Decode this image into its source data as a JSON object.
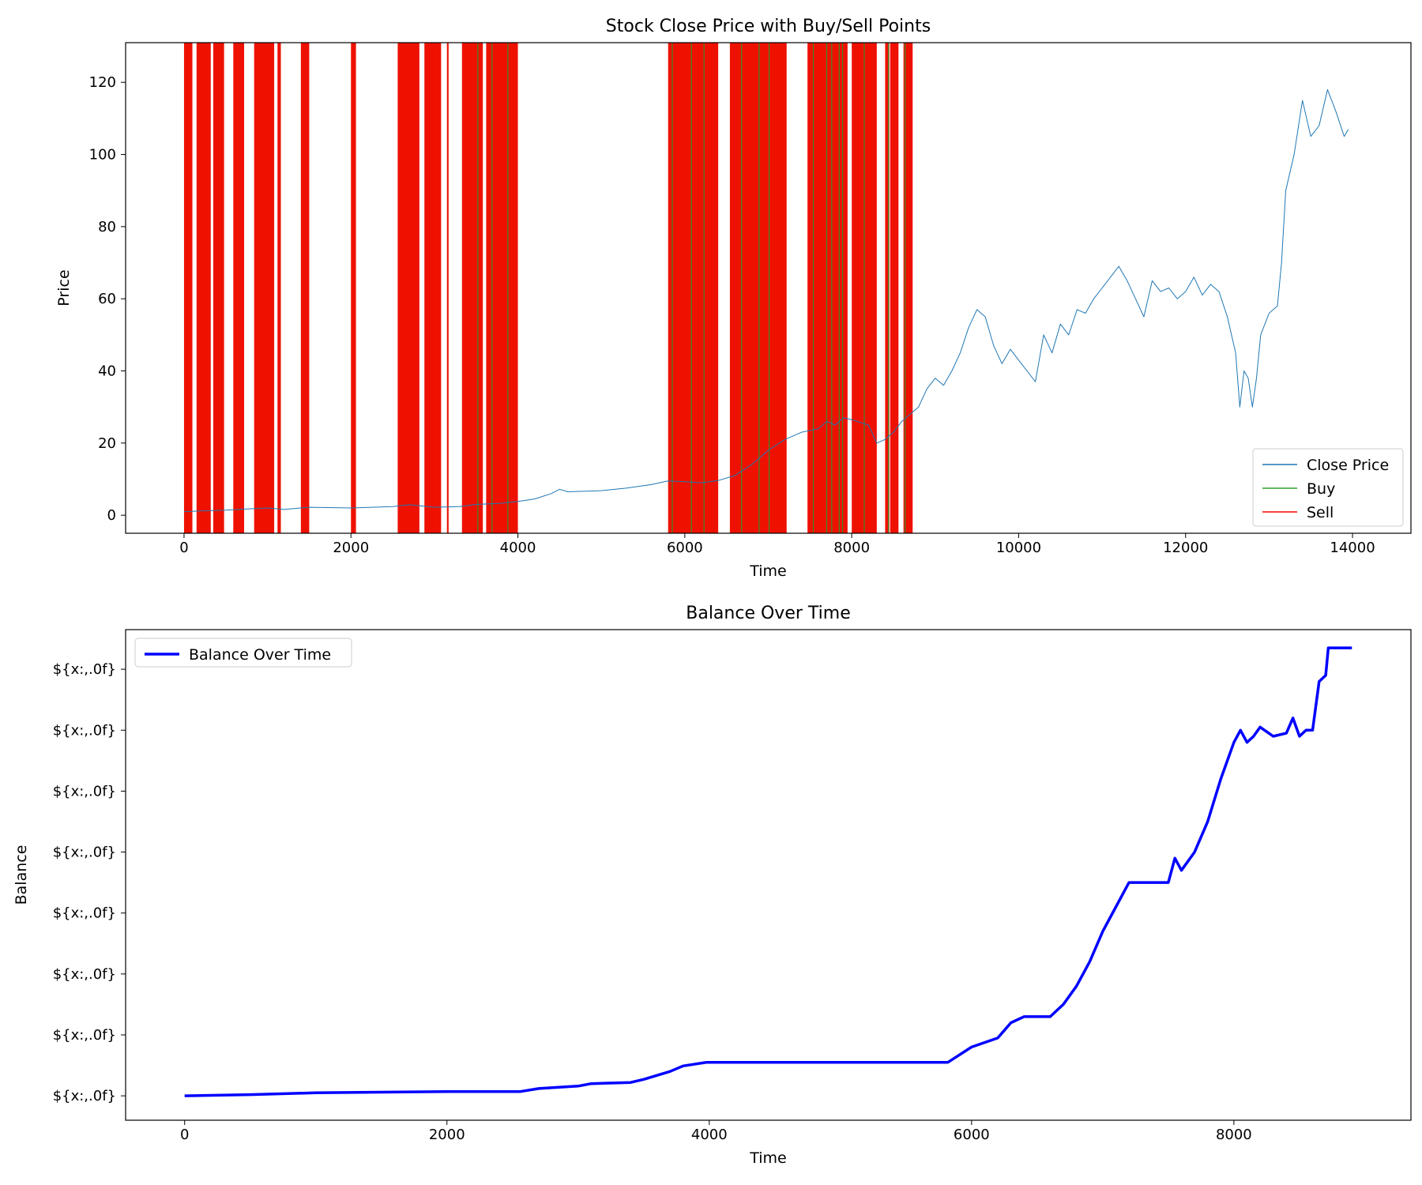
{
  "chart_data": [
    {
      "type": "line",
      "title": "Stock Close Price with Buy/Sell Points",
      "xlabel": "Time",
      "ylabel": "Price",
      "xlim": [
        -700,
        14700
      ],
      "ylim": [
        -5,
        131
      ],
      "xticks": [
        0,
        2000,
        4000,
        6000,
        8000,
        10000,
        12000,
        14000
      ],
      "xtick_labels": [
        "0",
        "2000",
        "4000",
        "6000",
        "8000",
        "10000",
        "12000",
        "14000"
      ],
      "yticks": [
        0,
        20,
        40,
        60,
        80,
        100,
        120
      ],
      "ytick_labels": [
        "0",
        "20",
        "40",
        "60",
        "80",
        "100",
        "120"
      ],
      "grid": false,
      "legend_position": "lower-right",
      "legend": [
        {
          "label": "Close Price",
          "color": "#1f77b4"
        },
        {
          "label": "Buy",
          "color": "#2ca02c"
        },
        {
          "label": "Sell",
          "color": "#ff0000"
        }
      ],
      "series": [
        {
          "name": "Close Price",
          "color": "#1f77b4",
          "x": [
            0,
            200,
            500,
            800,
            1000,
            1200,
            1500,
            2000,
            2500,
            2700,
            3000,
            3300,
            3500,
            3800,
            4000,
            4200,
            4400,
            4500,
            4600,
            5000,
            5300,
            5600,
            5800,
            6000,
            6200,
            6400,
            6600,
            6800,
            7000,
            7200,
            7400,
            7600,
            7700,
            7800,
            7900,
            8000,
            8200,
            8300,
            8400,
            8500,
            8600,
            8700,
            8800,
            8900,
            9000,
            9100,
            9200,
            9300,
            9400,
            9500,
            9600,
            9700,
            9800,
            9900,
            10000,
            10100,
            10200,
            10300,
            10400,
            10500,
            10600,
            10700,
            10800,
            10900,
            11000,
            11100,
            11200,
            11300,
            11400,
            11500,
            11600,
            11700,
            11800,
            11900,
            12000,
            12100,
            12200,
            12300,
            12400,
            12500,
            12600,
            12650,
            12700,
            12750,
            12800,
            12850,
            12900,
            13000,
            13100,
            13150,
            13200,
            13300,
            13400,
            13500,
            13600,
            13700,
            13800,
            13900,
            13950
          ],
          "y": [
            1.0,
            1.2,
            1.4,
            1.8,
            2.0,
            1.6,
            2.2,
            2.0,
            2.4,
            2.9,
            2.2,
            2.4,
            3.0,
            3.3,
            3.8,
            4.5,
            6.0,
            7.2,
            6.5,
            6.8,
            7.5,
            8.5,
            9.5,
            9.3,
            9.0,
            9.6,
            11.0,
            14.0,
            18.0,
            21.0,
            23.0,
            24.0,
            26.0,
            25.0,
            27.0,
            26.5,
            25.0,
            20.0,
            21.0,
            23.0,
            26.0,
            28.0,
            30.0,
            35.0,
            38.0,
            36.0,
            40.0,
            45.0,
            52.0,
            57.0,
            55.0,
            47.0,
            42.0,
            46.0,
            43.0,
            40.0,
            37.0,
            50.0,
            45.0,
            53.0,
            50.0,
            57.0,
            56.0,
            60.0,
            63.0,
            66.0,
            69.0,
            65.0,
            60.0,
            55.0,
            65.0,
            62.0,
            63.0,
            60.0,
            62.0,
            66.0,
            61.0,
            64.0,
            62.0,
            55.0,
            45.0,
            30.0,
            40.0,
            38.0,
            30.0,
            38.0,
            50.0,
            56.0,
            58.0,
            70.0,
            90.0,
            100.0,
            115.0,
            105.0,
            108.0,
            118.0,
            112.0,
            105.0,
            107.0
          ]
        }
      ],
      "trade_bands": [
        [
          0,
          100
        ],
        [
          150,
          320
        ],
        [
          350,
          480
        ],
        [
          590,
          720
        ],
        [
          840,
          1080
        ],
        [
          1120,
          1160
        ],
        [
          1400,
          1500
        ],
        [
          2000,
          2060
        ],
        [
          2560,
          2820
        ],
        [
          2880,
          3080
        ],
        [
          3150,
          3170
        ],
        [
          3330,
          3580
        ],
        [
          3620,
          4000
        ],
        [
          5800,
          6400
        ],
        [
          6540,
          7220
        ],
        [
          7470,
          7950
        ],
        [
          8000,
          8300
        ],
        [
          8400,
          8450
        ],
        [
          8460,
          8560
        ],
        [
          8620,
          8730
        ]
      ],
      "buy_lines": [
        3520,
        3690,
        3880,
        5850,
        6080,
        6230,
        6680,
        6890,
        7010,
        7540,
        7700,
        7760,
        7850,
        7890,
        8150,
        8440,
        8640
      ]
    },
    {
      "type": "line",
      "title": "Balance Over Time",
      "xlabel": "Time",
      "ylabel": "Balance",
      "xlim": [
        -450,
        9350
      ],
      "ylim": [
        -0.4,
        7.65
      ],
      "xticks": [
        0,
        2000,
        4000,
        6000,
        8000
      ],
      "xtick_labels": [
        "0",
        "2000",
        "4000",
        "6000",
        "8000"
      ],
      "yticks": [
        0,
        1,
        2,
        3,
        4,
        5,
        6,
        7
      ],
      "ytick_labels": [
        "${x:,.0f}",
        "${x:,.0f}",
        "${x:,.0f}",
        "${x:,.0f}",
        "${x:,.0f}",
        "${x:,.0f}",
        "${x:,.0f}",
        "${x:,.0f}"
      ],
      "grid": false,
      "legend_position": "upper-left",
      "legend": [
        {
          "label": "Balance Over Time",
          "color": "#0000ff"
        }
      ],
      "series": [
        {
          "name": "Balance Over Time",
          "color": "#0000ff",
          "x": [
            0,
            500,
            1000,
            1500,
            2000,
            2560,
            2700,
            3000,
            3100,
            3400,
            3500,
            3700,
            3800,
            3980,
            5820,
            6000,
            6200,
            6300,
            6400,
            6600,
            6700,
            6800,
            6900,
            7000,
            7100,
            7200,
            7500,
            7550,
            7600,
            7700,
            7800,
            7900,
            8000,
            8050,
            8100,
            8150,
            8200,
            8300,
            8400,
            8450,
            8500,
            8550,
            8600,
            8650,
            8700,
            8720,
            8900
          ],
          "y": [
            0.0,
            0.02,
            0.05,
            0.06,
            0.07,
            0.07,
            0.12,
            0.16,
            0.2,
            0.22,
            0.27,
            0.4,
            0.49,
            0.55,
            0.55,
            0.8,
            0.95,
            1.2,
            1.3,
            1.3,
            1.5,
            1.8,
            2.2,
            2.7,
            3.1,
            3.5,
            3.5,
            3.9,
            3.7,
            4.0,
            4.5,
            5.2,
            5.8,
            6.0,
            5.8,
            5.9,
            6.05,
            5.9,
            5.95,
            6.2,
            5.9,
            6.0,
            6.0,
            6.8,
            6.9,
            7.35,
            7.35
          ]
        }
      ]
    }
  ]
}
